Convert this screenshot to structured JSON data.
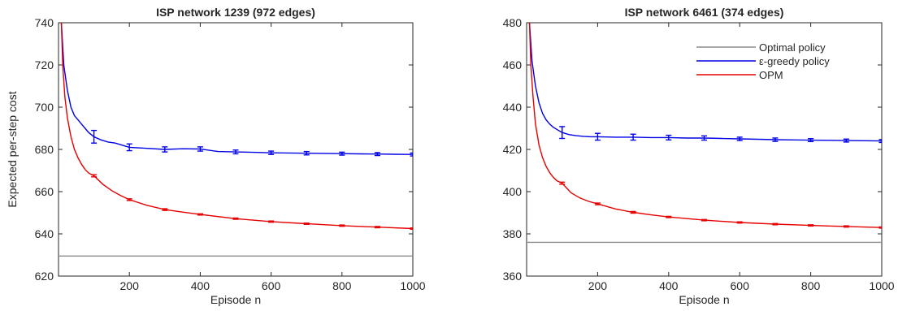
{
  "chart_data": [
    {
      "type": "line",
      "title": "ISP network 1239 (972 edges)",
      "xlabel": "Episode n",
      "ylabel": "Expected per-step cost",
      "xlim": [
        0,
        1000
      ],
      "ylim": [
        620,
        740
      ],
      "xticks": [
        200,
        400,
        600,
        800,
        1000
      ],
      "yticks": [
        620,
        640,
        660,
        680,
        700,
        720,
        740
      ],
      "grid": false,
      "legend_position": "none",
      "series": [
        {
          "name": "Optimal policy",
          "color": "#8c8c8c",
          "x": [
            0,
            1000
          ],
          "y": [
            629.5,
            629.5
          ]
        },
        {
          "name": "ε-greedy policy",
          "color": "#0000e6",
          "x": [
            8,
            15,
            25,
            35,
            45,
            55,
            65,
            75,
            85,
            100,
            120,
            140,
            160,
            180,
            200,
            250,
            300,
            350,
            400,
            450,
            500,
            550,
            600,
            650,
            700,
            750,
            800,
            850,
            900,
            950,
            1000
          ],
          "y": [
            740,
            720,
            708,
            700,
            696,
            694,
            692,
            690,
            688,
            686,
            684.5,
            683.5,
            683,
            682,
            681,
            680.5,
            680,
            680.3,
            680.2,
            679,
            678.8,
            678.6,
            678.4,
            678.3,
            678.2,
            678.1,
            678,
            677.9,
            677.8,
            677.7,
            677.6
          ],
          "errorbars": {
            "x": [
              100,
              200,
              300,
              400,
              500,
              600,
              700,
              800,
              900,
              1000
            ],
            "y": [
              686.0,
              681.0,
              680.0,
              680.2,
              678.8,
              678.4,
              678.2,
              678.0,
              677.8,
              677.6
            ],
            "err": [
              3.0,
              1.6,
              1.2,
              1.0,
              0.9,
              0.8,
              0.8,
              0.7,
              0.7,
              0.7
            ]
          }
        },
        {
          "name": "OPM",
          "color": "#e60000",
          "x": [
            8,
            12,
            18,
            25,
            35,
            45,
            55,
            65,
            75,
            85,
            100,
            125,
            150,
            175,
            200,
            250,
            300,
            350,
            400,
            500,
            600,
            700,
            800,
            900,
            1000
          ],
          "y": [
            740,
            720,
            705,
            695,
            686,
            680,
            676,
            673,
            670.5,
            668.8,
            667.5,
            663.5,
            660.5,
            658.2,
            656.2,
            653.5,
            651.5,
            650.3,
            649.2,
            647.2,
            645.8,
            644.8,
            643.9,
            643.2,
            642.5
          ],
          "errorbars": {
            "x": [
              100,
              200,
              300,
              400,
              500,
              600,
              700,
              800,
              900,
              1000
            ],
            "y": [
              667.5,
              656.2,
              651.5,
              649.2,
              647.2,
              645.8,
              644.8,
              643.9,
              643.2,
              642.5
            ],
            "err": [
              0.5,
              0.4,
              0.4,
              0.3,
              0.3,
              0.3,
              0.3,
              0.3,
              0.3,
              0.3
            ]
          }
        }
      ]
    },
    {
      "type": "line",
      "title": "ISP network 6461 (374 edges)",
      "xlabel": "Episode n",
      "ylabel": "",
      "xlim": [
        0,
        1000
      ],
      "ylim": [
        360,
        480
      ],
      "xticks": [
        200,
        400,
        600,
        800,
        1000
      ],
      "yticks": [
        360,
        380,
        400,
        420,
        440,
        460,
        480
      ],
      "grid": false,
      "legend_position": "top-right",
      "series": [
        {
          "name": "Optimal policy",
          "color": "#8c8c8c",
          "x": [
            0,
            1000
          ],
          "y": [
            376,
            376
          ]
        },
        {
          "name": "ε-greedy policy",
          "color": "#0000e6",
          "x": [
            8,
            15,
            25,
            35,
            45,
            55,
            65,
            75,
            85,
            100,
            120,
            140,
            160,
            180,
            200,
            250,
            300,
            350,
            400,
            450,
            500,
            550,
            600,
            650,
            700,
            750,
            800,
            850,
            900,
            950,
            1000
          ],
          "y": [
            480,
            462,
            450,
            442,
            437,
            434,
            432,
            430.5,
            429.5,
            428,
            427,
            426.5,
            426.2,
            426,
            426,
            425.8,
            425.8,
            425.6,
            425.6,
            425.4,
            425.4,
            425.2,
            425,
            424.8,
            424.6,
            424.5,
            424.4,
            424.3,
            424.2,
            424.1,
            424
          ],
          "errorbars": {
            "x": [
              100,
              200,
              300,
              400,
              500,
              600,
              700,
              800,
              900,
              1000
            ],
            "y": [
              428.0,
              426.0,
              425.8,
              425.6,
              425.4,
              425.0,
              424.6,
              424.4,
              424.2,
              424.0
            ],
            "err": [
              2.8,
              1.6,
              1.4,
              1.1,
              1.0,
              0.8,
              0.8,
              0.7,
              0.7,
              0.7
            ]
          }
        },
        {
          "name": "OPM",
          "color": "#e60000",
          "x": [
            8,
            12,
            18,
            25,
            35,
            45,
            55,
            65,
            75,
            85,
            100,
            125,
            150,
            175,
            200,
            250,
            300,
            350,
            400,
            500,
            600,
            700,
            800,
            900,
            1000
          ],
          "y": [
            480,
            460,
            445,
            432,
            422,
            416,
            412,
            409,
            406.8,
            405.2,
            404,
            399.5,
            397,
            395.4,
            394.2,
            391.8,
            390.2,
            389,
            388,
            386.5,
            385.4,
            384.6,
            384,
            383.5,
            383
          ],
          "errorbars": {
            "x": [
              100,
              200,
              300,
              400,
              500,
              600,
              700,
              800,
              900,
              1000
            ],
            "y": [
              404.0,
              394.2,
              390.2,
              388.0,
              386.5,
              385.4,
              384.6,
              384.0,
              383.5,
              383.0
            ],
            "err": [
              0.5,
              0.4,
              0.4,
              0.3,
              0.3,
              0.3,
              0.3,
              0.3,
              0.3,
              0.3
            ]
          }
        }
      ]
    }
  ],
  "legend": {
    "entries": [
      {
        "label": "Optimal policy",
        "color": "#8c8c8c"
      },
      {
        "label": "ε-greedy policy",
        "color": "#0000e6"
      },
      {
        "label": "OPM",
        "color": "#e60000"
      }
    ]
  }
}
